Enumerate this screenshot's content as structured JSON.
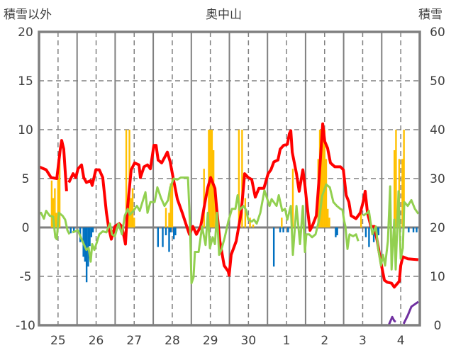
{
  "chart_data": {
    "type": "bar+line",
    "title": "奥中山",
    "ylabel_left": "積雪以外",
    "ylabel_right": "積雪",
    "ylim_left": [
      -10,
      20
    ],
    "yticks_left": [
      "20",
      "15",
      "10",
      "5",
      "0",
      "-5",
      "-10"
    ],
    "ylim_right": [
      0,
      60
    ],
    "yticks_right": [
      "60",
      "50",
      "40",
      "30",
      "20",
      "10",
      "0"
    ],
    "x_unit": "hours from start of day 25",
    "xlim": [
      0,
      240
    ],
    "x_ticklabels": [
      "25",
      "26",
      "27",
      "28",
      "29",
      "30",
      "1",
      "2",
      "3",
      "4"
    ],
    "grid": true,
    "colors": {
      "red": "#FF0000",
      "green": "#92D050",
      "orange": "#FFC000",
      "blue": "#0070C0",
      "purple": "#7030A0",
      "grid": "#808080"
    },
    "series": [
      {
        "name": "orange-bars",
        "kind": "bar",
        "axis": "left",
        "color": "#FFC000",
        "x": [
          8,
          9,
          10,
          11,
          12,
          13,
          55,
          56,
          57,
          58,
          59,
          60,
          80,
          82,
          83,
          84,
          104,
          107,
          108,
          109,
          110,
          111,
          112,
          126,
          128,
          130,
          133,
          135,
          153,
          160,
          176,
          177,
          178,
          179,
          180,
          181,
          182,
          183,
          203,
          224,
          225,
          227,
          229,
          230
        ],
        "values": [
          4.8,
          3.0,
          4.0,
          1.5,
          5.0,
          6.9,
          10,
          2,
          10,
          3,
          4,
          1,
          2.0,
          1.5,
          4.5,
          5.0,
          6.0,
          10,
          10,
          10,
          7.9,
          4.0,
          1.0,
          10,
          10,
          3.0,
          1.0,
          0.3,
          1.0,
          6.0,
          7.0,
          10,
          10,
          10,
          10,
          7.0,
          1.9,
          1.0,
          1.5,
          7.9,
          10,
          7.0,
          7.0,
          10
        ]
      },
      {
        "name": "blue-bars",
        "kind": "bar",
        "axis": "left",
        "color": "#0070C0",
        "x": [
          20,
          22,
          26,
          28,
          29,
          30,
          31,
          32,
          33,
          34,
          75,
          78,
          80,
          82,
          83,
          85,
          86,
          148,
          152,
          154,
          157,
          187,
          188,
          206,
          208,
          211,
          213,
          214,
          233,
          236,
          238
        ],
        "values": [
          -0.6,
          -0.5,
          -1.5,
          -3.0,
          -3.5,
          -5.6,
          -4.0,
          -1.9,
          -1.0,
          -0.5,
          -2.0,
          -2.0,
          -0.8,
          -2.5,
          -0.5,
          -1.2,
          -0.8,
          -4.0,
          -0.5,
          -0.5,
          -0.5,
          -1.0,
          -0.8,
          -1.0,
          -2.0,
          -1.5,
          -1.0,
          -0.8,
          -0.5,
          -0.5,
          -0.5
        ]
      },
      {
        "name": "red-line",
        "kind": "line",
        "axis": "left",
        "color": "#FF0000",
        "x": [
          0,
          4.5,
          7.6,
          11.2,
          13.4,
          14.3,
          15.6,
          16.5,
          17.4,
          null,
          18.8,
          21.5,
          23.2,
          24.6,
          26.8,
          28.2,
          29.9,
          32.6,
          33.5,
          35.8,
          38,
          40.2,
          42.5,
          43.8,
          45.6,
          47.8,
          50.5,
          52.3,
          54.5,
          55.9,
          58.1,
          60.3,
          63,
          63.9,
          66.2,
          68.4,
          70.2,
          72.4,
          73.8,
          75.1,
          77.3,
          79.6,
          80.9,
          82.7,
          84.5,
          87.2,
          90.3,
          92.5,
          94.8,
          97,
          99.2,
          101.9,
          105,
          106.4,
          108.2,
          110.9,
          111.8,
          114,
          116.7,
          119.3,
          119.8,
          121.1,
          124.3,
          127.4,
          129.6,
          131.9,
          134.1,
          136.3,
          138.6,
          141.7,
          144.4,
          146.2,
          148,
          150.6,
          152,
          154.2,
          156.5,
          157.8,
          158.7,
          159.6,
          162.3,
          164,
          166.3,
          167.6,
          169,
          170.8,
          172.1,
          174.8,
          176.6,
          177.9,
          178.8,
          180.1,
          181.9,
          183.7,
          186.4,
          190,
          191.8,
          193.6,
          195.3,
          196.7,
          199.8,
          202.5,
          204.3,
          205.6,
          207,
          209.2,
          211.4,
          213.2,
          215.5,
          217.7,
          219.5,
          222.2,
          223.9,
          227.1,
          228,
          229.3,
          232.4,
          239.1
        ],
        "values": [
          6.2,
          5.9,
          5.1,
          5.0,
          8.0,
          8.9,
          8.0,
          5.8,
          3.7,
          null,
          4.6,
          5.5,
          5.1,
          6.0,
          6.4,
          5.1,
          4.6,
          4.8,
          4.3,
          5.9,
          5.9,
          5.1,
          1.5,
          0.1,
          -1.2,
          0.1,
          0.4,
          0.1,
          -1.7,
          2.2,
          5.9,
          6.6,
          6.4,
          5.1,
          6.2,
          6.4,
          6.0,
          8.4,
          8.4,
          6.9,
          6.6,
          7.3,
          7.7,
          6.7,
          5.1,
          2.9,
          1.5,
          0.4,
          -0.7,
          0.1,
          -0.7,
          0.1,
          2.9,
          4.1,
          5.1,
          4.0,
          2.2,
          -1.4,
          -3.9,
          -4.5,
          -4.9,
          -2.8,
          -1.4,
          1.5,
          5.5,
          5.1,
          4.9,
          3.1,
          4.0,
          4.0,
          5.5,
          5.9,
          6.7,
          6.9,
          8.0,
          8.4,
          8.5,
          9.6,
          9.9,
          7.7,
          5.5,
          3.7,
          5.9,
          4.3,
          2.2,
          -0.3,
          0.1,
          1.2,
          5.1,
          8.4,
          10.6,
          8.8,
          8.1,
          6.6,
          6.2,
          6.2,
          5.9,
          3.3,
          2.6,
          1.2,
          0.9,
          1.5,
          2.6,
          3.7,
          1.5,
          0.1,
          0.1,
          -1.4,
          -3.6,
          -5.4,
          -5.6,
          -5.7,
          -6.1,
          -5.5,
          -3.9,
          -3.0,
          -3.2,
          -3.3
        ]
      },
      {
        "name": "green-line",
        "kind": "line",
        "axis": "left",
        "color": "#92D050",
        "x": [
          0,
          1.3,
          3.1,
          4.5,
          6.7,
          8.9,
          10.3,
          11.2,
          12.5,
          14.8,
          16.5,
          17.9,
          19.2,
          null,
          21,
          24.6,
          26.8,
          28.2,
          29.9,
          31.3,
          32.6,
          33.5,
          34.9,
          36.7,
          38,
          40.2,
          42.5,
          44.7,
          46,
          47.8,
          50.1,
          52.3,
          54.1,
          55.9,
          57.2,
          59.5,
          61.7,
          63.5,
          67.1,
          68.4,
          70.2,
          72.9,
          74.6,
          76.9,
          79.1,
          81.4,
          82.7,
          84.9,
          87.2,
          89.4,
          91.7,
          93.9,
          95.2,
          96.1,
          97.4,
          98.3,
          100.6,
          102.8,
          105,
          106.4,
          107.7,
          109.5,
          110.9,
          112.2,
          113.5,
          114.9,
          117.1,
          119.3,
          121.6,
          123.8,
          125.2,
          126.5,
          128.8,
          130.5,
          131.9,
          134.1,
          135.5,
          137.2,
          139.5,
          142.1,
          145.3,
          146.6,
          149.7,
          151.1,
          153.3,
          155.1,
          156.5,
          158.7,
          160,
          162.3,
          164.5,
          166.3,
          167.6,
          168.5,
          170.3,
          172.1,
          174.3,
          176.6,
          178.4,
          181,
          183.3,
          185.5,
          187.7,
          190,
          191.3,
          192.2,
          193.1,
          194.4,
          195.7,
          198,
          199.8,
          201.2,
          null,
          204.3,
          207,
          207.9,
          210.1,
          212.3,
          213.7,
          215.5,
          216.8,
          218.1,
          219.9,
          221.3,
          222.2,
          223.9,
          224.8,
          226.6,
          228,
          229.3,
          230.2,
          232.4,
          234.7,
          236.9,
          239.1
        ],
        "values": [
          1.4,
          1.5,
          0.9,
          1.7,
          1.2,
          1.1,
          -1.0,
          -1.2,
          1.5,
          1.2,
          0.8,
          -0.3,
          -0.7,
          null,
          -0.5,
          -0.3,
          -1.2,
          -1.7,
          -2.3,
          -2.1,
          -3.5,
          -1.7,
          -2.3,
          -1.4,
          -0.7,
          -0.4,
          -0.5,
          0.4,
          -0.7,
          -0.9,
          0.4,
          -0.7,
          1.2,
          1.9,
          1.3,
          1.7,
          2.2,
          1.7,
          3.6,
          1.5,
          2.6,
          2.6,
          4.1,
          3.0,
          2.2,
          2.8,
          4.1,
          5.0,
          4.9,
          5.1,
          5.1,
          5.1,
          0.1,
          -5.7,
          -5.1,
          -2.5,
          -2.5,
          0.1,
          -1.8,
          1.5,
          -2.1,
          -1.0,
          -1.7,
          1.5,
          -2.8,
          -2.3,
          -1.0,
          0.6,
          1.9,
          1.9,
          3.3,
          1.8,
          2.2,
          1.8,
          0.8,
          0.6,
          0.8,
          0.4,
          1.5,
          3.8,
          2.2,
          2.9,
          2.2,
          3.3,
          1.7,
          1.9,
          0.8,
          2.2,
          -2.8,
          2.2,
          -1.7,
          2.2,
          -2.5,
          -0.7,
          -0.7,
          -1.0,
          -0.7,
          0.8,
          3.2,
          4.4,
          4.1,
          2.6,
          2.2,
          1.9,
          1.8,
          0.8,
          0.1,
          -2.2,
          -0.7,
          -0.9,
          -0.7,
          -1.4,
          null,
          1.2,
          1.5,
          1.7,
          -0.7,
          0.1,
          -2.1,
          -3.9,
          -2.8,
          -3.9,
          -1.4,
          4.2,
          -4.3,
          0.8,
          -4.3,
          3.7,
          -3.2,
          -2.1,
          2.6,
          2.2,
          2.8,
          1.9,
          1.4
        ]
      },
      {
        "name": "purple-line",
        "kind": "line",
        "axis": "right",
        "color": "#7030A0",
        "x": [
          0,
          220.4,
          222.6,
          223.9,
          224.8,
          null,
          229.8,
          232.4,
          234.7,
          236.9,
          239.1
        ],
        "values": [
          0,
          0,
          1.7,
          0.9,
          0.7,
          null,
          0.3,
          2.0,
          3.8,
          4.3,
          4.8
        ]
      }
    ]
  }
}
